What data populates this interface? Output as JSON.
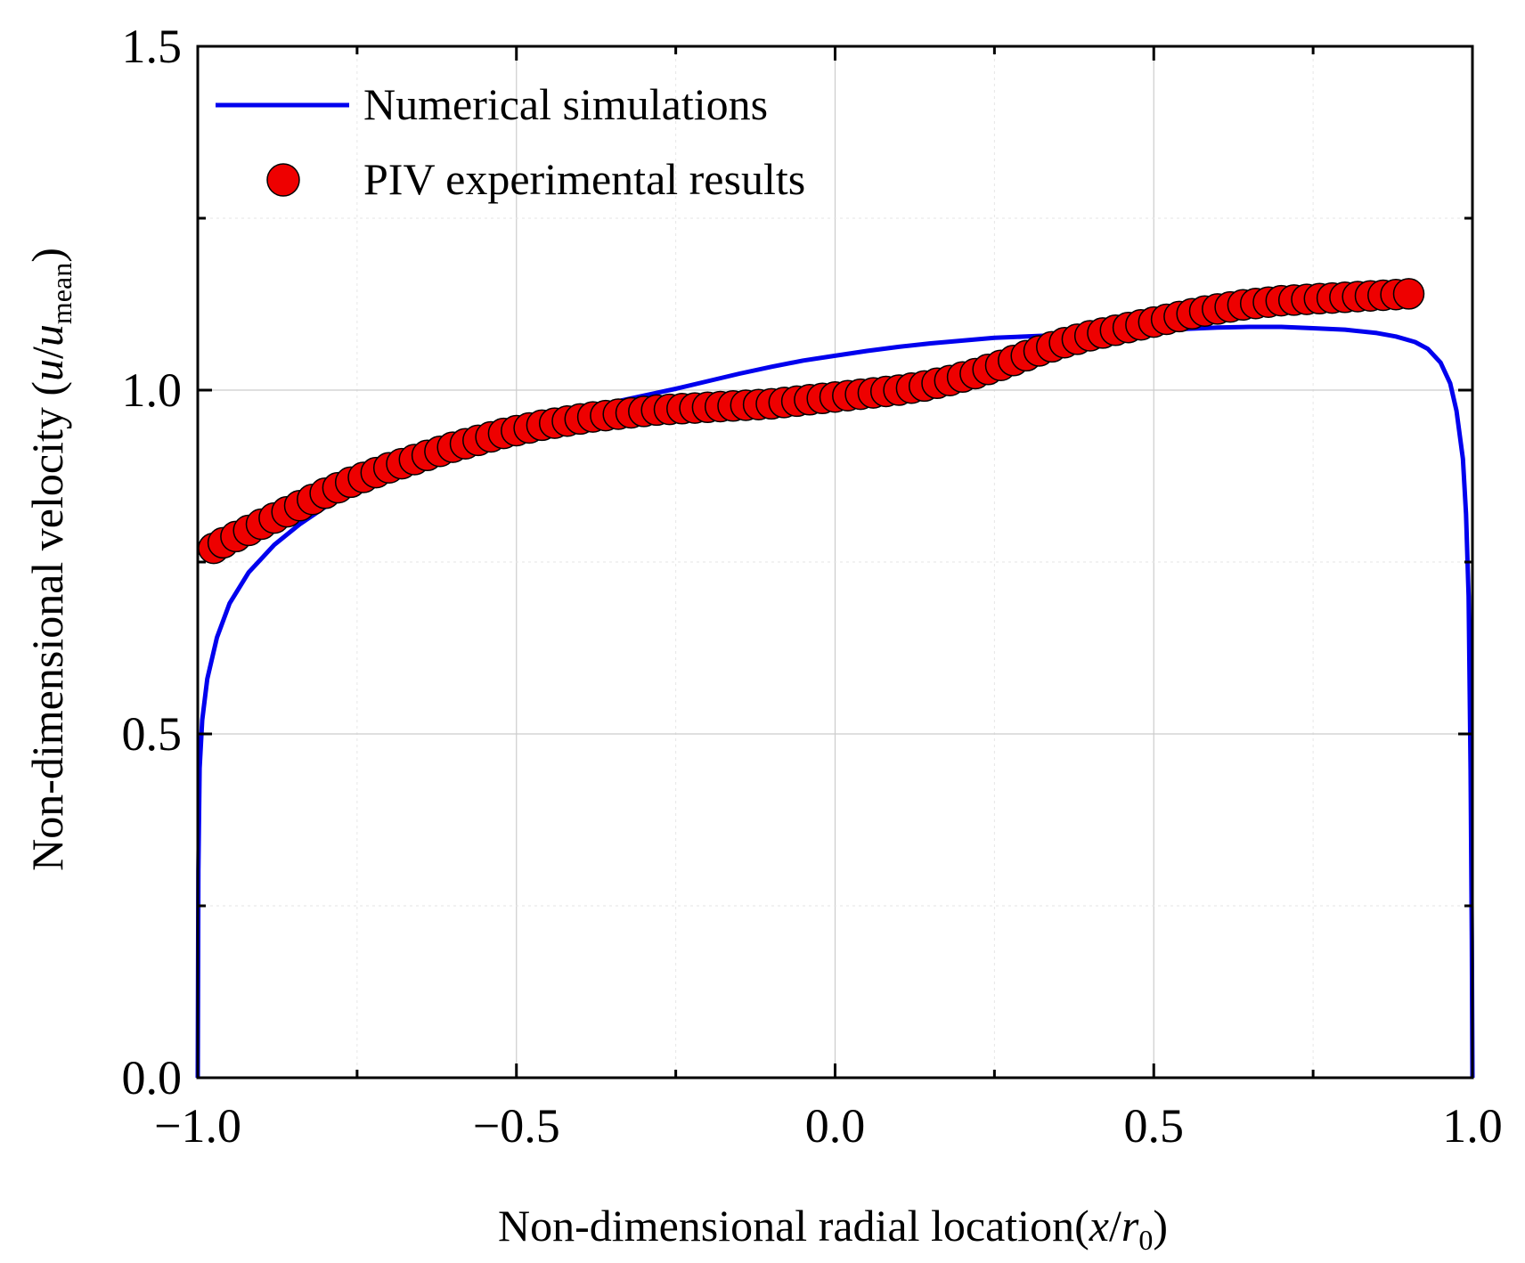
{
  "chart_data": {
    "type": "line",
    "xlabel": {
      "prefix": "Non-dimensional radial location(",
      "var": "x",
      "slash": "/",
      "var2": "r",
      "sub2": "0",
      "suffix": ")"
    },
    "ylabel": {
      "prefix": "Non-dimensional velocity (",
      "var": "u",
      "slash": "/",
      "var2": "u",
      "sub2": "mean",
      "suffix": ")"
    },
    "xlim": [
      -1.0,
      1.0
    ],
    "ylim": [
      0.0,
      1.5
    ],
    "x_ticks": [
      -1.0,
      -0.5,
      0.0,
      0.5,
      1.0
    ],
    "x_tick_labels": [
      "−1.0",
      "−0.5",
      "0.0",
      "0.5",
      "1.0"
    ],
    "y_ticks": [
      0.0,
      0.5,
      1.0,
      1.5
    ],
    "y_tick_labels": [
      "0.0",
      "0.5",
      "1.0",
      "1.5"
    ],
    "grid": true,
    "legend_position": "top-left",
    "series": [
      {
        "name": "Numerical simulations",
        "style": "line",
        "color": "#0000ee",
        "x": [
          -1.0,
          -0.999,
          -0.997,
          -0.993,
          -0.985,
          -0.97,
          -0.95,
          -0.92,
          -0.88,
          -0.84,
          -0.8,
          -0.75,
          -0.7,
          -0.65,
          -0.6,
          -0.55,
          -0.5,
          -0.45,
          -0.4,
          -0.35,
          -0.3,
          -0.25,
          -0.2,
          -0.15,
          -0.1,
          -0.05,
          0.0,
          0.05,
          0.1,
          0.15,
          0.2,
          0.25,
          0.3,
          0.35,
          0.4,
          0.45,
          0.5,
          0.55,
          0.6,
          0.65,
          0.7,
          0.75,
          0.8,
          0.85,
          0.88,
          0.91,
          0.93,
          0.95,
          0.965,
          0.975,
          0.985,
          0.99,
          0.994,
          0.997,
          0.999,
          1.0
        ],
        "y": [
          0.0,
          0.3,
          0.45,
          0.52,
          0.58,
          0.64,
          0.69,
          0.735,
          0.775,
          0.805,
          0.83,
          0.855,
          0.875,
          0.895,
          0.915,
          0.935,
          0.95,
          0.962,
          0.972,
          0.982,
          0.992,
          1.002,
          1.013,
          1.024,
          1.034,
          1.043,
          1.05,
          1.057,
          1.063,
          1.068,
          1.072,
          1.076,
          1.078,
          1.08,
          1.081,
          1.083,
          1.086,
          1.089,
          1.091,
          1.092,
          1.092,
          1.09,
          1.088,
          1.083,
          1.078,
          1.07,
          1.06,
          1.04,
          1.01,
          0.97,
          0.9,
          0.82,
          0.7,
          0.45,
          0.2,
          0.0
        ]
      },
      {
        "name": "PIV experimental results",
        "style": "scatter",
        "color": "#ee0000",
        "x": [
          -0.975,
          -0.96,
          -0.94,
          -0.92,
          -0.9,
          -0.88,
          -0.86,
          -0.84,
          -0.82,
          -0.8,
          -0.78,
          -0.76,
          -0.74,
          -0.72,
          -0.7,
          -0.68,
          -0.66,
          -0.64,
          -0.62,
          -0.6,
          -0.58,
          -0.56,
          -0.54,
          -0.52,
          -0.5,
          -0.48,
          -0.46,
          -0.44,
          -0.42,
          -0.4,
          -0.38,
          -0.36,
          -0.34,
          -0.32,
          -0.3,
          -0.28,
          -0.26,
          -0.24,
          -0.22,
          -0.2,
          -0.18,
          -0.16,
          -0.14,
          -0.12,
          -0.1,
          -0.08,
          -0.06,
          -0.04,
          -0.02,
          0.0,
          0.02,
          0.04,
          0.06,
          0.08,
          0.1,
          0.12,
          0.14,
          0.16,
          0.18,
          0.2,
          0.22,
          0.24,
          0.26,
          0.28,
          0.3,
          0.32,
          0.34,
          0.36,
          0.38,
          0.4,
          0.42,
          0.44,
          0.46,
          0.48,
          0.5,
          0.52,
          0.54,
          0.56,
          0.58,
          0.6,
          0.62,
          0.64,
          0.66,
          0.68,
          0.7,
          0.72,
          0.74,
          0.76,
          0.78,
          0.8,
          0.82,
          0.84,
          0.86,
          0.88,
          0.9
        ],
        "y": [
          0.77,
          0.778,
          0.787,
          0.796,
          0.805,
          0.814,
          0.823,
          0.832,
          0.841,
          0.85,
          0.858,
          0.866,
          0.873,
          0.88,
          0.887,
          0.893,
          0.899,
          0.905,
          0.911,
          0.917,
          0.922,
          0.927,
          0.932,
          0.937,
          0.941,
          0.945,
          0.949,
          0.952,
          0.955,
          0.958,
          0.961,
          0.963,
          0.965,
          0.967,
          0.969,
          0.971,
          0.972,
          0.973,
          0.974,
          0.975,
          0.976,
          0.977,
          0.978,
          0.979,
          0.98,
          0.982,
          0.984,
          0.986,
          0.988,
          0.99,
          0.992,
          0.994,
          0.996,
          0.998,
          1.0,
          1.003,
          1.006,
          1.01,
          1.014,
          1.019,
          1.024,
          1.03,
          1.036,
          1.043,
          1.05,
          1.057,
          1.063,
          1.069,
          1.074,
          1.079,
          1.083,
          1.087,
          1.091,
          1.095,
          1.099,
          1.103,
          1.107,
          1.111,
          1.115,
          1.118,
          1.121,
          1.124,
          1.126,
          1.128,
          1.13,
          1.131,
          1.132,
          1.133,
          1.134,
          1.135,
          1.136,
          1.137,
          1.138,
          1.139,
          1.14
        ]
      }
    ]
  }
}
